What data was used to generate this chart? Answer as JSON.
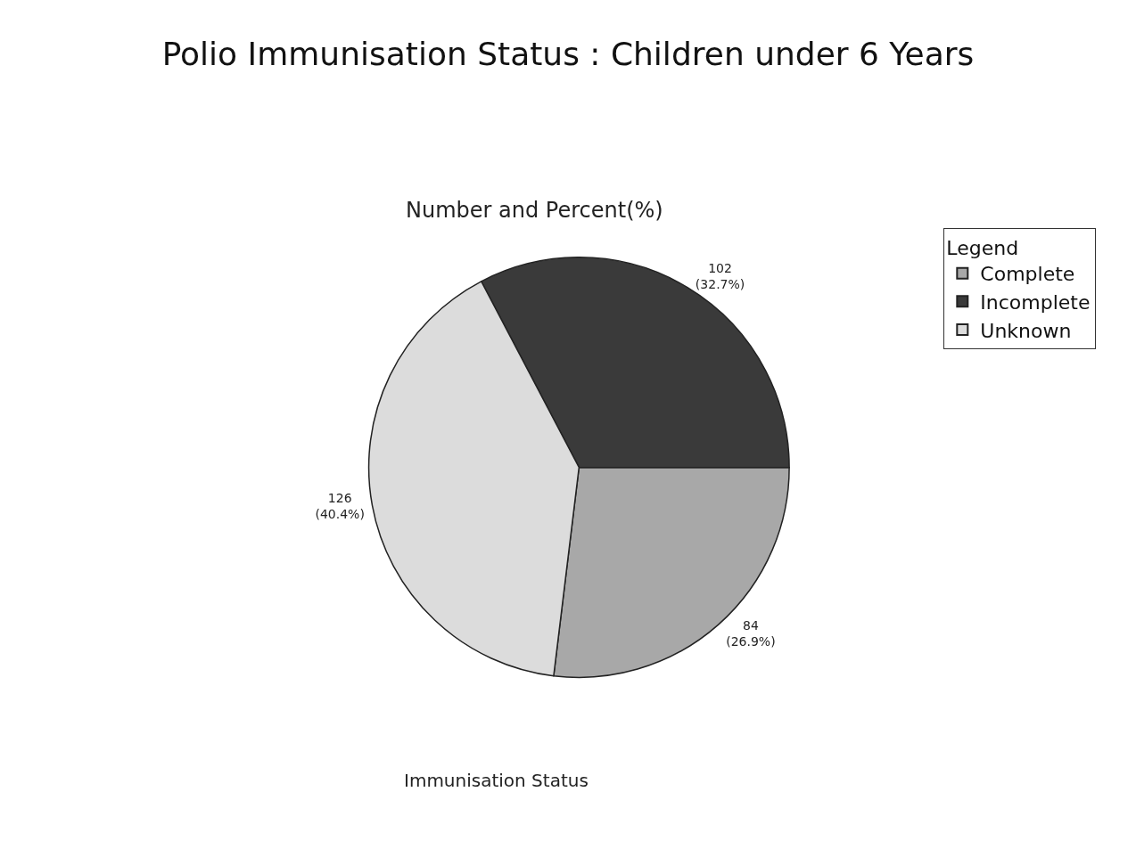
{
  "chart_data": {
    "type": "pie",
    "title": "Polio Immunisation Status : Children under 6 Years",
    "subtitle": "Number and Percent(%)",
    "categories": [
      "Complete",
      "Incomplete",
      "Unknown"
    ],
    "values": [
      84,
      102,
      126
    ],
    "colors": [
      "#a8a8a8",
      "#3a3a3a",
      "#dcdcdc"
    ],
    "value_labels": [
      "84\n(26.9%)",
      "102\n(32.7%)",
      "126\n(40.4%)"
    ],
    "legend": "top right",
    "legend_title": "Legend",
    "annotations": [
      "Immunisation Status"
    ]
  }
}
